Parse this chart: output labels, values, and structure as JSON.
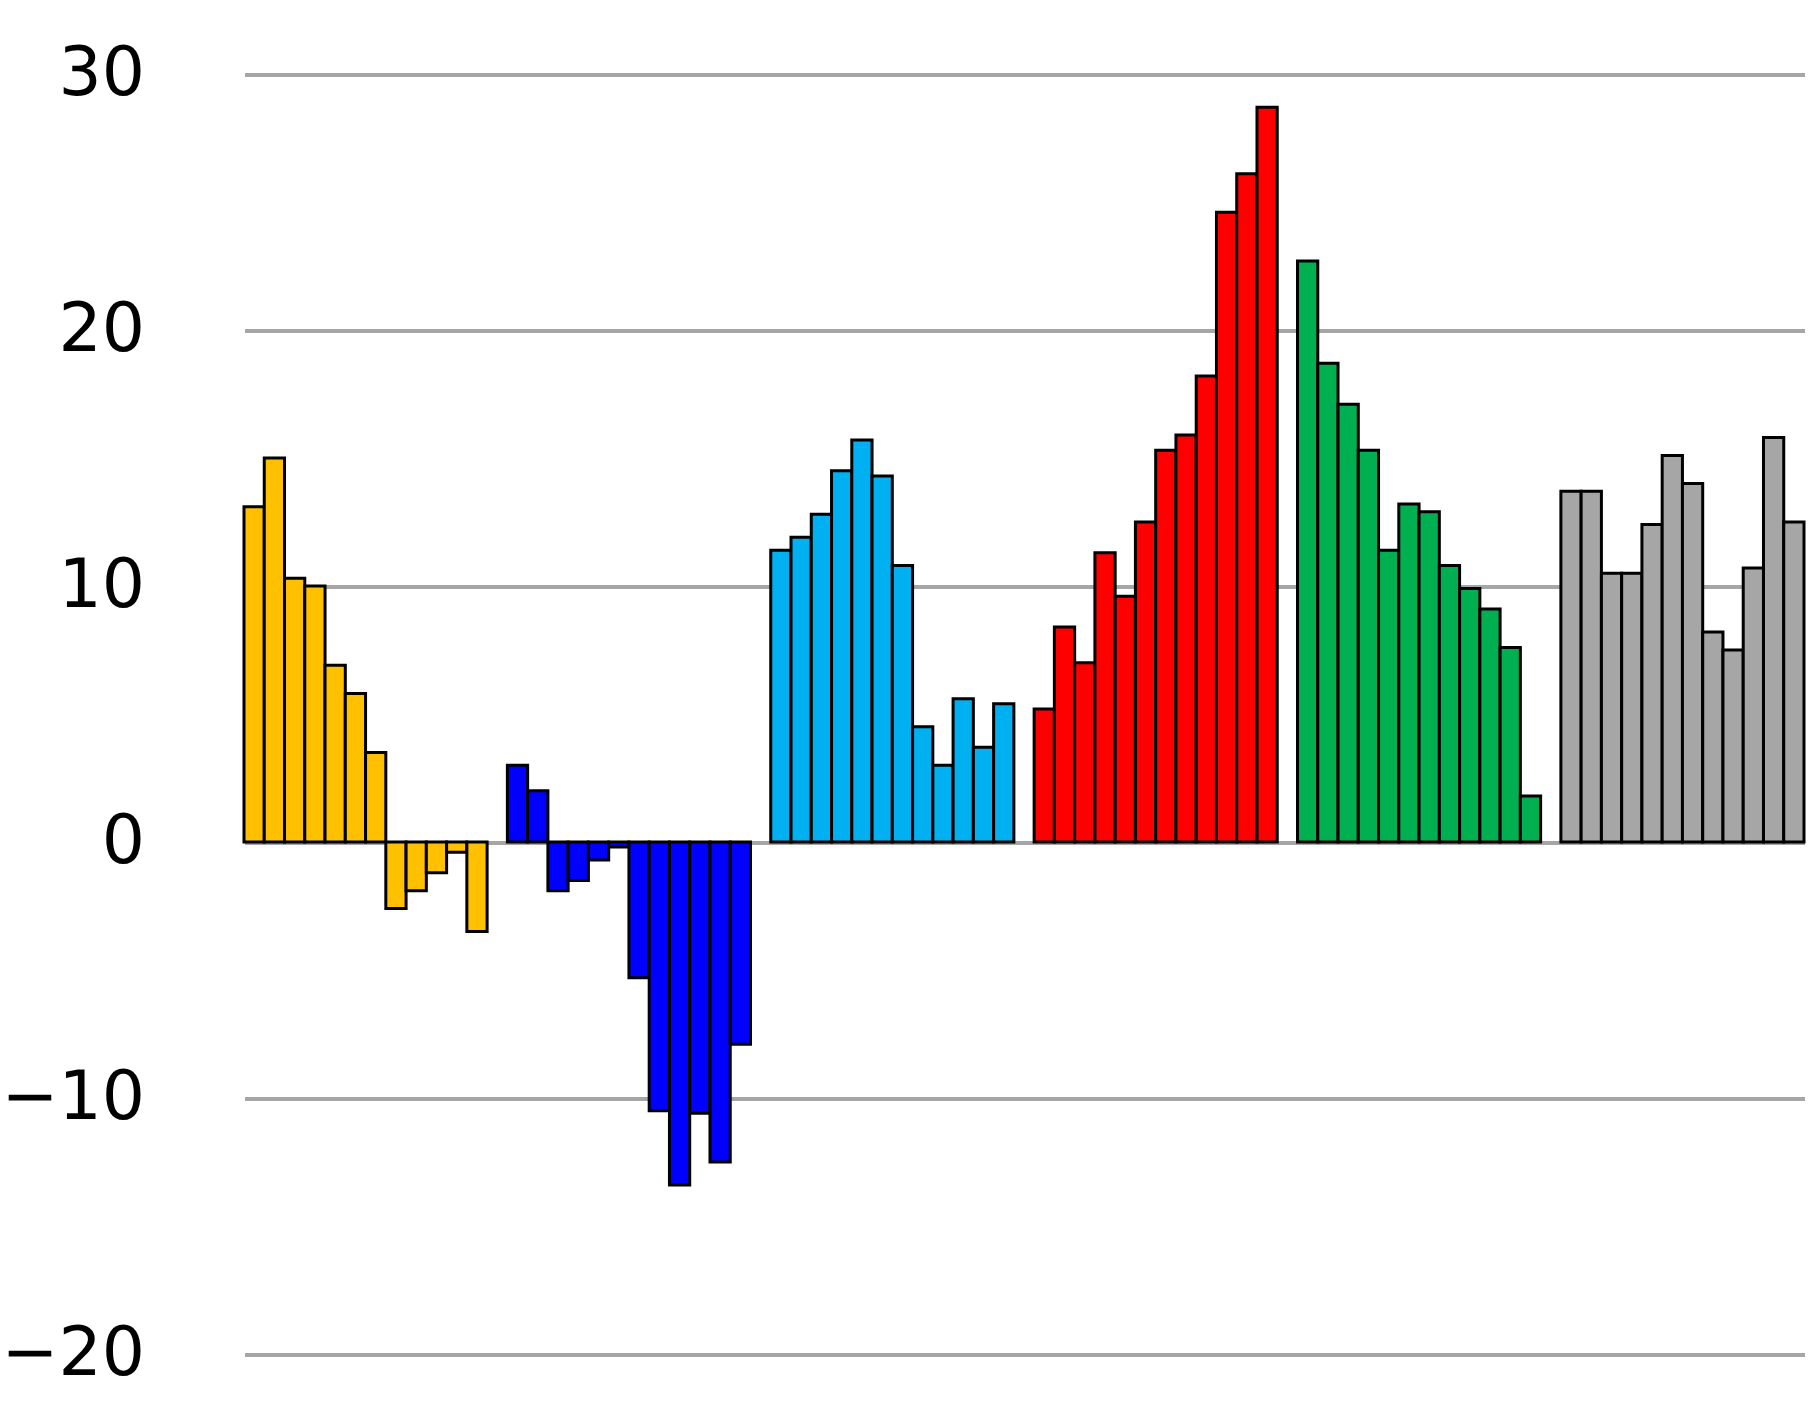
{
  "chart_data": {
    "type": "bar",
    "categories": [
      null,
      null,
      null,
      null,
      null,
      null,
      null,
      null,
      null,
      null,
      null,
      null,
      null,
      null,
      null,
      null,
      null,
      null,
      null,
      null,
      null,
      null,
      null,
      null,
      null,
      null,
      null,
      null,
      null,
      null,
      null,
      null,
      null,
      null,
      null,
      null,
      null,
      null,
      null,
      null,
      null,
      null,
      null,
      null,
      null,
      null,
      null,
      null,
      null,
      null,
      null,
      null,
      null,
      null,
      null,
      null,
      null,
      null,
      null,
      null,
      null,
      null,
      null,
      null,
      null,
      null,
      null,
      null,
      null,
      null,
      null,
      null,
      null,
      null,
      null,
      null,
      null
    ],
    "values": [
      13.1,
      15.0,
      10.3,
      10.0,
      6.9,
      5.8,
      3.5,
      -2.6,
      -1.9,
      -1.2,
      -0.4,
      -3.5,
      null,
      3.0,
      2.0,
      -1.9,
      -1.5,
      -0.7,
      -0.2,
      -5.3,
      -10.5,
      -13.4,
      -10.6,
      -12.5,
      -7.9,
      null,
      11.4,
      11.9,
      12.8,
      14.5,
      15.7,
      14.3,
      10.8,
      4.5,
      3.0,
      5.6,
      3.7,
      5.4,
      null,
      5.2,
      8.4,
      7.0,
      11.3,
      9.6,
      12.5,
      15.3,
      15.9,
      18.2,
      24.6,
      26.1,
      28.7,
      null,
      22.7,
      18.7,
      17.1,
      15.3,
      11.4,
      13.2,
      12.9,
      10.8,
      9.9,
      9.1,
      7.6,
      1.8,
      null,
      13.7,
      13.7,
      10.5,
      10.5,
      12.4,
      15.1,
      14.0,
      8.2,
      7.5,
      10.7,
      15.8,
      12.5
    ],
    "colors": [
      "#ffc000",
      "#ffc000",
      "#ffc000",
      "#ffc000",
      "#ffc000",
      "#ffc000",
      "#ffc000",
      "#ffc000",
      "#ffc000",
      "#ffc000",
      "#ffc000",
      "#ffc000",
      null,
      "#0000ff",
      "#0000ff",
      "#0000ff",
      "#0000ff",
      "#0000ff",
      "#0000ff",
      "#0000ff",
      "#0000ff",
      "#0000ff",
      "#0000ff",
      "#0000ff",
      "#0000ff",
      null,
      "#00b0f0",
      "#00b0f0",
      "#00b0f0",
      "#00b0f0",
      "#00b0f0",
      "#00b0f0",
      "#00b0f0",
      "#00b0f0",
      "#00b0f0",
      "#00b0f0",
      "#00b0f0",
      "#00b0f0",
      null,
      "#ff0000",
      "#ff0000",
      "#ff0000",
      "#ff0000",
      "#ff0000",
      "#ff0000",
      "#ff0000",
      "#ff0000",
      "#ff0000",
      "#ff0000",
      "#ff0000",
      "#ff0000",
      null,
      "#00b050",
      "#00b050",
      "#00b050",
      "#00b050",
      "#00b050",
      "#00b050",
      "#00b050",
      "#00b050",
      "#00b050",
      "#00b050",
      "#00b050",
      "#00b050",
      null,
      "#a6a6a6",
      "#a6a6a6",
      "#a6a6a6",
      "#a6a6a6",
      "#a6a6a6",
      "#a6a6a6",
      "#a6a6a6",
      "#a6a6a6",
      "#a6a6a6",
      "#a6a6a6",
      "#a6a6a6",
      "#a6a6a6"
    ],
    "ylim": [
      -20,
      30
    ],
    "yticks": [
      {
        "value": -20,
        "label": "−20"
      },
      {
        "value": -10,
        "label": "−10"
      },
      0,
      10,
      20,
      30
    ],
    "grid": "y",
    "tick_labels": "y"
  }
}
